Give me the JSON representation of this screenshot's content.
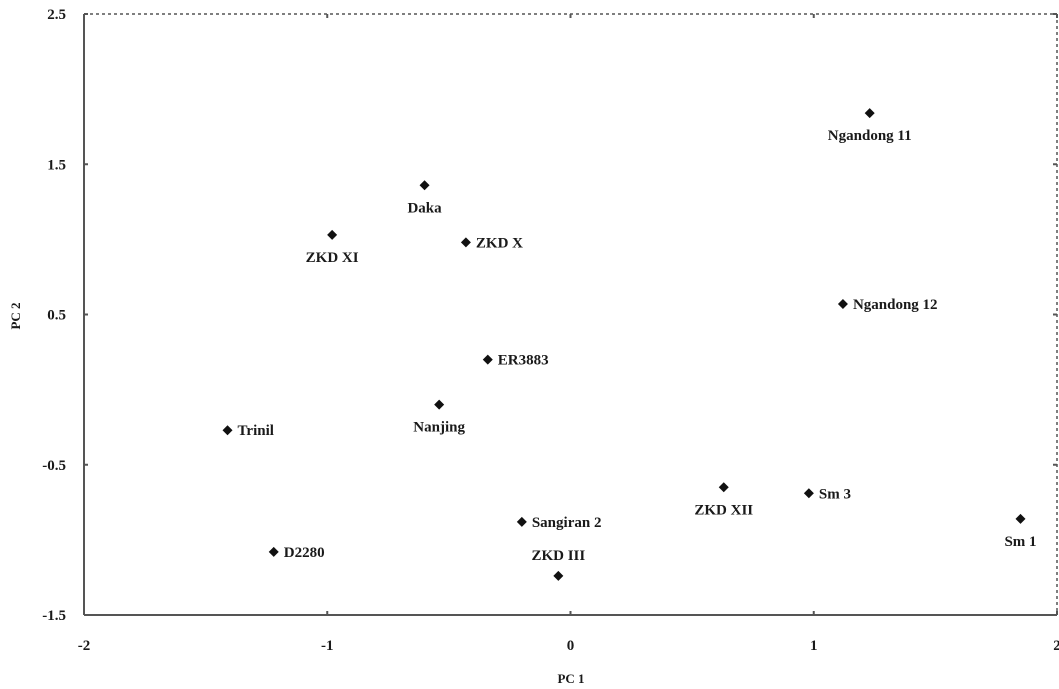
{
  "chart_data": {
    "type": "scatter",
    "title": "",
    "xlabel": "PC 1",
    "ylabel": "PC 2",
    "xlim": [
      -2,
      2
    ],
    "ylim": [
      -1.5,
      2.5
    ],
    "x_ticks": [
      -2,
      -1,
      0,
      1,
      2
    ],
    "x_tick_labels": [
      "-2",
      "-1",
      "0",
      "1",
      "2"
    ],
    "y_ticks": [
      -1.5,
      -0.5,
      0.5,
      1.5,
      2.5
    ],
    "y_tick_labels": [
      "-1.5",
      "-0.5",
      "0.5",
      "1.5",
      "2.5"
    ],
    "grid": "dashed-border",
    "marker": "diamond",
    "colors": {
      "marker": "#111111",
      "axis": "#555555",
      "text": "#1a1a1a"
    },
    "points": [
      {
        "label": "Ngandong 11",
        "x": 1.23,
        "y": 1.84,
        "label_pos": "below"
      },
      {
        "label": "Daka",
        "x": -0.6,
        "y": 1.36,
        "label_pos": "below"
      },
      {
        "label": "ZKD XI",
        "x": -0.98,
        "y": 1.03,
        "label_pos": "below"
      },
      {
        "label": "ZKD X",
        "x": -0.43,
        "y": 0.98,
        "label_pos": "right"
      },
      {
        "label": "Ngandong 12",
        "x": 1.12,
        "y": 0.57,
        "label_pos": "right"
      },
      {
        "label": "ER3883",
        "x": -0.34,
        "y": 0.2,
        "label_pos": "right"
      },
      {
        "label": "Nanjing",
        "x": -0.54,
        "y": -0.1,
        "label_pos": "below"
      },
      {
        "label": "Trinil",
        "x": -1.41,
        "y": -0.27,
        "label_pos": "right"
      },
      {
        "label": "ZKD XII",
        "x": 0.63,
        "y": -0.65,
        "label_pos": "below"
      },
      {
        "label": "Sm 3",
        "x": 0.98,
        "y": -0.69,
        "label_pos": "right"
      },
      {
        "label": "Sm 1",
        "x": 1.85,
        "y": -0.86,
        "label_pos": "below"
      },
      {
        "label": "Sangiran 2",
        "x": -0.2,
        "y": -0.88,
        "label_pos": "right"
      },
      {
        "label": "D2280",
        "x": -1.22,
        "y": -1.08,
        "label_pos": "right"
      },
      {
        "label": "ZKD III",
        "x": -0.05,
        "y": -1.24,
        "label_pos": "above"
      }
    ]
  }
}
